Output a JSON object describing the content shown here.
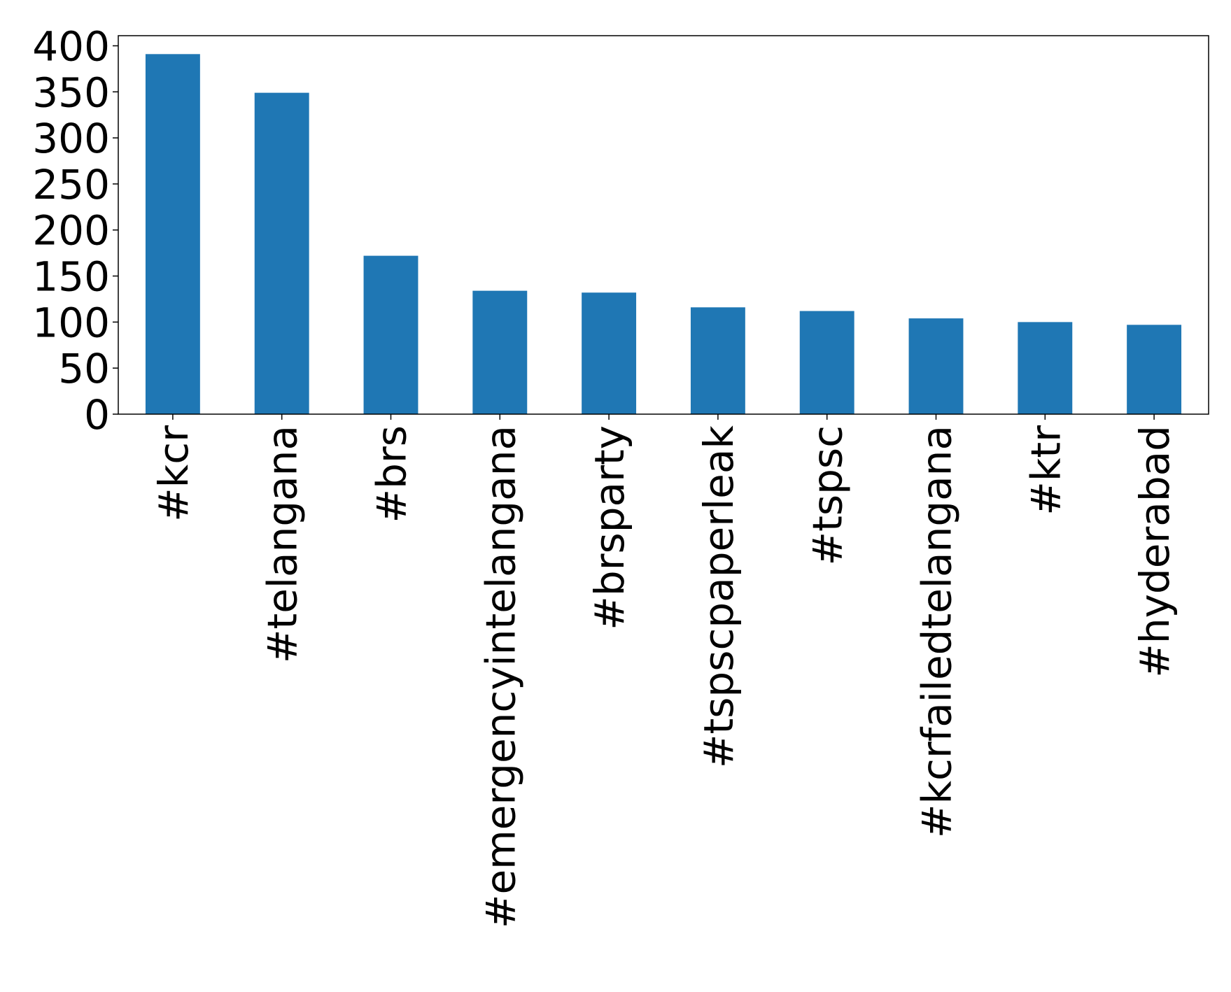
{
  "chart_data": {
    "type": "bar",
    "categories": [
      "#kcr",
      "#telangana",
      "#brs",
      "#emergencyintelangana",
      "#brsparty",
      "#tspscpaperleak",
      "#tspsc",
      "#kcrfailedtelangana",
      "#ktr",
      "#hyderabad"
    ],
    "values": [
      391,
      349,
      172,
      134,
      132,
      116,
      112,
      104,
      100,
      97
    ],
    "color": "#1f77b4",
    "ylim": [
      0,
      411
    ],
    "yticks": [
      0,
      50,
      100,
      150,
      200,
      250,
      300,
      350,
      400
    ],
    "grid": false
  }
}
